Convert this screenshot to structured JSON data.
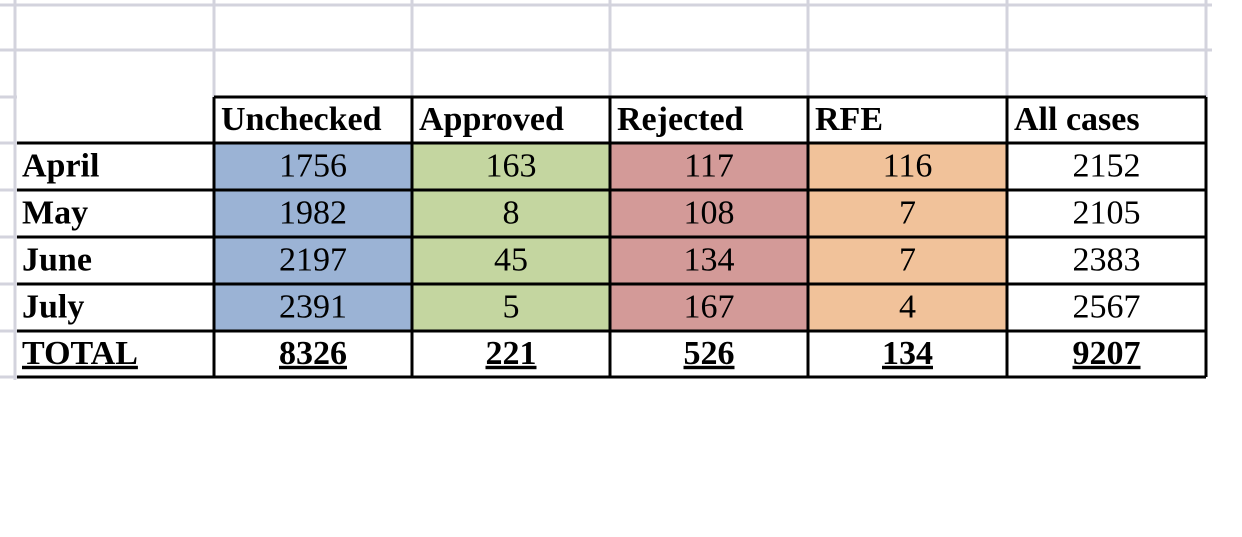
{
  "table": {
    "header": [
      "Unchecked",
      "Approved",
      "Rejected",
      "RFE",
      "All cases"
    ],
    "rows": [
      [
        "April",
        1756,
        163,
        117,
        116,
        2152
      ],
      [
        "May",
        1982,
        8,
        108,
        7,
        2105
      ],
      [
        "June",
        2197,
        45,
        134,
        7,
        2383
      ],
      [
        "July",
        2391,
        5,
        167,
        4,
        2567
      ]
    ],
    "total": [
      "TOTAL",
      8326,
      221,
      526,
      134,
      9207
    ]
  }
}
